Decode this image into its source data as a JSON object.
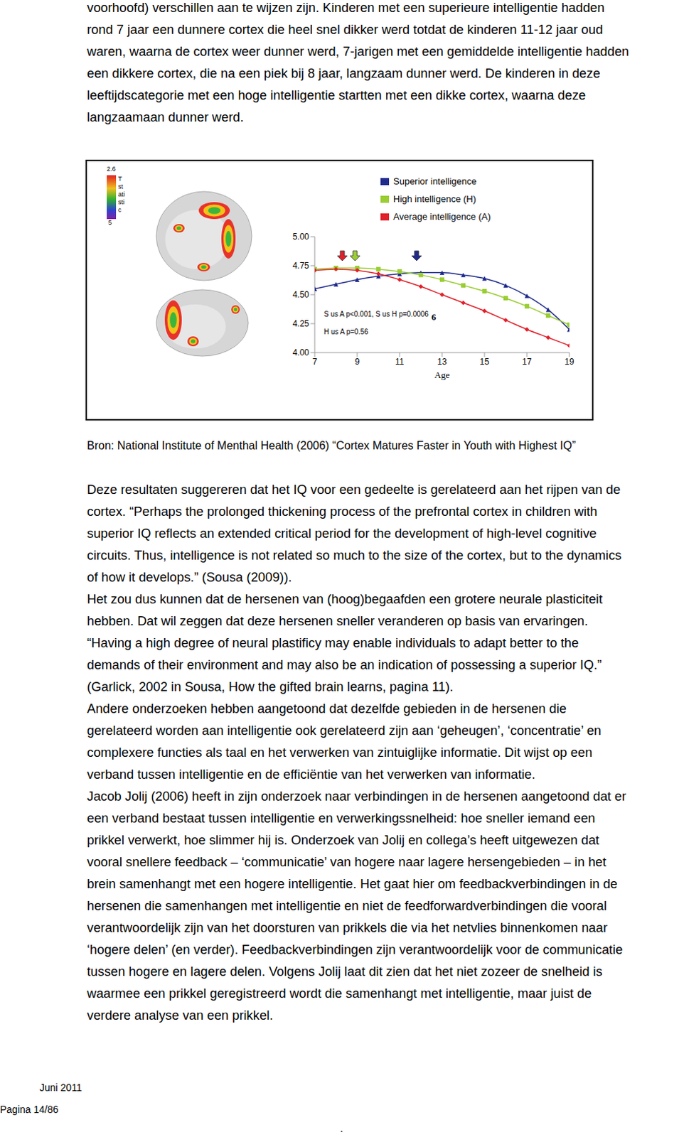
{
  "header_text": {
    "lines": [
      "voorhoofd) verschillen aan te wijzen zijn. Kinderen met een superieure intelligentie hadden",
      "rond 7 jaar een dunnere cortex die heel snel dikker werd totdat de kinderen 11-12 jaar oud",
      "waren, waarna de cortex weer dunner werd, 7-jarigen met een gemiddelde intelligentie hadden",
      "een dikkere cortex, die na een piek bij 8 jaar, langzaam dunner werd. De kinderen in deze",
      "leeftijdscategorie met een hoge intelligentie startten met een dikke cortex, waarna deze",
      "langzaamaan dunner werd."
    ]
  },
  "chart_data": {
    "type": "line",
    "colorbar": {
      "top_label": "2.6",
      "title": [
        "T",
        "st",
        "ati",
        "sti",
        "c"
      ],
      "bottom_label": "5"
    },
    "x": [
      7,
      8,
      9,
      10,
      11,
      12,
      13,
      14,
      15,
      16,
      17,
      18,
      19
    ],
    "series": [
      {
        "name": "Superior intelligence",
        "color": "#1f2a8c",
        "marker": "triangle",
        "values": [
          4.55,
          4.59,
          4.63,
          4.66,
          4.68,
          4.69,
          4.69,
          4.67,
          4.64,
          4.58,
          4.49,
          4.37,
          4.2
        ]
      },
      {
        "name": "High intelligence (H)",
        "color": "#9acd32",
        "marker": "square",
        "values": [
          4.72,
          4.73,
          4.73,
          4.72,
          4.7,
          4.67,
          4.63,
          4.58,
          4.53,
          4.47,
          4.4,
          4.32,
          4.24
        ]
      },
      {
        "name": "Average intelligence (A)",
        "color": "#e0202a",
        "marker": "diamond",
        "values": [
          4.71,
          4.72,
          4.71,
          4.68,
          4.63,
          4.57,
          4.5,
          4.43,
          4.36,
          4.28,
          4.2,
          4.13,
          4.06
        ]
      }
    ],
    "peaks": [
      {
        "series": "Average intelligence (A)",
        "age": 8.3
      },
      {
        "series": "High intelligence (H)",
        "age": 8.9
      },
      {
        "series": "Superior intelligence",
        "age": 11.8
      }
    ],
    "xlim": [
      7,
      19
    ],
    "xticks": [
      7,
      9,
      11,
      13,
      15,
      17,
      19
    ],
    "ylim": [
      4,
      5
    ],
    "yticks": [
      {
        "value": 4,
        "label": "4.00"
      },
      {
        "value": 4.25,
        "label": "4.25"
      },
      {
        "value": 4.5,
        "label": "4.50"
      },
      {
        "value": 4.75,
        "label": "4.75"
      },
      {
        "value": 5,
        "label": "5.00"
      }
    ],
    "x_label": "Age",
    "legend": "top",
    "grid": false,
    "annotations": [
      "S us A p<0.001, S us H p=0.0006",
      "H us A p=0.56",
      "6"
    ]
  },
  "source": "Bron: National Institute of Menthal Health (2006) “Cortex Matures Faster in Youth with Highest IQ”",
  "body": {
    "lines": [
      "Deze resultaten suggereren dat het IQ voor een gedeelte is gerelateerd aan het rijpen van de",
      "cortex. “Perhaps the prolonged thickening process of the prefrontal cortex in children with",
      "superior IQ reflects an extended critical period for the development of high-level cognitive",
      "circuits. Thus, intelligence is not related so much to the size of the cortex, but to the dynamics",
      "of how it develops.” (Sousa (2009)).",
      "Het zou dus kunnen dat de hersenen van (hoog)begaafden een grotere neurale plasticiteit",
      "hebben. Dat wil zeggen dat deze hersenen sneller veranderen op basis van ervaringen.",
      "“Having a high degree of neural plastificy may enable individuals to adapt better to the",
      "demands of their environment and may also be an indication of possessing a superior IQ.”",
      "(Garlick, 2002 in Sousa, How the gifted brain learns, pagina 11).",
      "Andere onderzoeken hebben aangetoond dat dezelfde gebieden in de hersenen die",
      "gerelateerd worden aan intelligentie ook gerelateerd zijn aan ‘geheugen’, ‘concentratie’ en",
      "complexere functies als taal en het verwerken van zintuiglijke informatie. Dit wijst op een",
      "verband tussen intelligentie en de efficiëntie van het verwerken van informatie.",
      "Jacob Jolij (2006) heeft in zijn onderzoek naar verbindingen in de hersenen aangetoond dat er",
      "een verband bestaat tussen intelligentie en verwerkingssnelheid: hoe sneller iemand een",
      "prikkel verwerkt, hoe slimmer hij is. Onderzoek van Jolij en collega’s heeft uitgewezen dat",
      "vooral snellere feedback – ‘communicatie’ van hogere naar lagere hersengebieden – in het",
      "brein samenhangt met een hogere intelligentie. Het gaat hier om feedbackverbindingen in de",
      "hersenen die samenhangen met intelligentie en niet de feedforwardverbindingen die vooral",
      "verantwoordelijk zijn van het doorsturen van prikkels die via het netvlies binnenkomen naar",
      "‘hogere delen’ (en verder). Feedbackverbindingen zijn verantwoordelijk voor de communicatie",
      "tussen hogere en lagere delen. Volgens Jolij laat dit zien dat het niet zozeer de snelheid is",
      "waarmee een prikkel geregistreerd wordt die samenhangt met intelligentie, maar juist de",
      "verdere analyse van een prikkel."
    ]
  },
  "footer": {
    "date": "Juni 2011",
    "page": "Pagina 14/86",
    "mark": "."
  }
}
